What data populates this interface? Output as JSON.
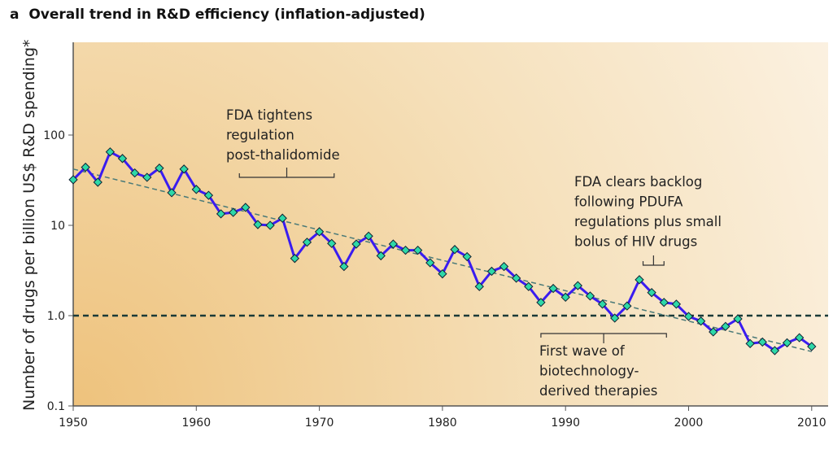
{
  "panel_label": "a",
  "title": "Overall trend in R&D efficiency (inflation-adjusted)",
  "chart_data": {
    "type": "line",
    "title": "Overall trend in R&D efficiency (inflation-adjusted)",
    "xlabel": "",
    "ylabel": "Number of drugs per billion US$ R&D spending*",
    "xlim": [
      1950,
      2011.5
    ],
    "ylim": [
      0.1,
      500
    ],
    "yscale": "log",
    "xticks": [
      1950,
      1960,
      1970,
      1980,
      1990,
      2000,
      2010
    ],
    "yticks": [
      0.1,
      1.0,
      10,
      100
    ],
    "ytick_labels": [
      "0.1",
      "1.0",
      "10",
      "100"
    ],
    "grid": false,
    "series": [
      {
        "color": "#3a1cf0",
        "marker_color": "#2ed8a8",
        "x": [
          1950,
          1951,
          1952,
          1953,
          1954,
          1955,
          1956,
          1957,
          1958,
          1959,
          1960,
          1961,
          1962,
          1963,
          1964,
          1965,
          1966,
          1967,
          1968,
          1969,
          1970,
          1971,
          1972,
          1973,
          1974,
          1975,
          1976,
          1977,
          1978,
          1979,
          1980,
          1981,
          1982,
          1983,
          1984,
          1985,
          1986,
          1987,
          1988,
          1989,
          1990,
          1991,
          1992,
          1993,
          1994,
          1995,
          1996,
          1997,
          1998,
          1999,
          2000,
          2001,
          2002,
          2003,
          2004,
          2005,
          2006,
          2007,
          2008,
          2009,
          2010
        ],
        "y": [
          32,
          44,
          30,
          65,
          55,
          38,
          34,
          43,
          23,
          42,
          25,
          21.5,
          13.4,
          13.9,
          15.8,
          10.2,
          10,
          12,
          4.3,
          6.5,
          8.5,
          6.3,
          3.5,
          6.2,
          7.6,
          4.6,
          6.2,
          5.3,
          5.3,
          3.85,
          2.9,
          5.4,
          4.5,
          2.1,
          3.1,
          3.5,
          2.6,
          2.1,
          1.4,
          2.0,
          1.6,
          2.15,
          1.65,
          1.34,
          0.94,
          1.28,
          2.5,
          1.8,
          1.4,
          1.34,
          0.98,
          0.87,
          0.66,
          0.76,
          0.92,
          0.49,
          0.51,
          0.41,
          0.5,
          0.57,
          0.455
        ]
      }
    ],
    "trendline": {
      "x": [
        1950,
        2010
      ],
      "y": [
        42,
        0.4
      ],
      "color": "#4a7a78",
      "style": "dashed"
    },
    "reference_line": {
      "y": 1.0,
      "color": "#1a3a38",
      "style": "dashed"
    },
    "annotations": [
      {
        "text_lines": [
          "FDA tightens",
          "regulation",
          "post-thalidomide"
        ],
        "bracket": [
          1963.5,
          1971.2
        ]
      },
      {
        "text_lines": [
          "FDA clears backlog",
          "following PDUFA",
          "regulations plus small",
          "bolus of HIV drugs"
        ],
        "bracket": [
          1996.3,
          1998
        ]
      },
      {
        "text_lines": [
          "First wave of",
          "biotechnology-",
          "derived therapies"
        ],
        "bracket": [
          1988,
          1998.2
        ]
      }
    ]
  }
}
